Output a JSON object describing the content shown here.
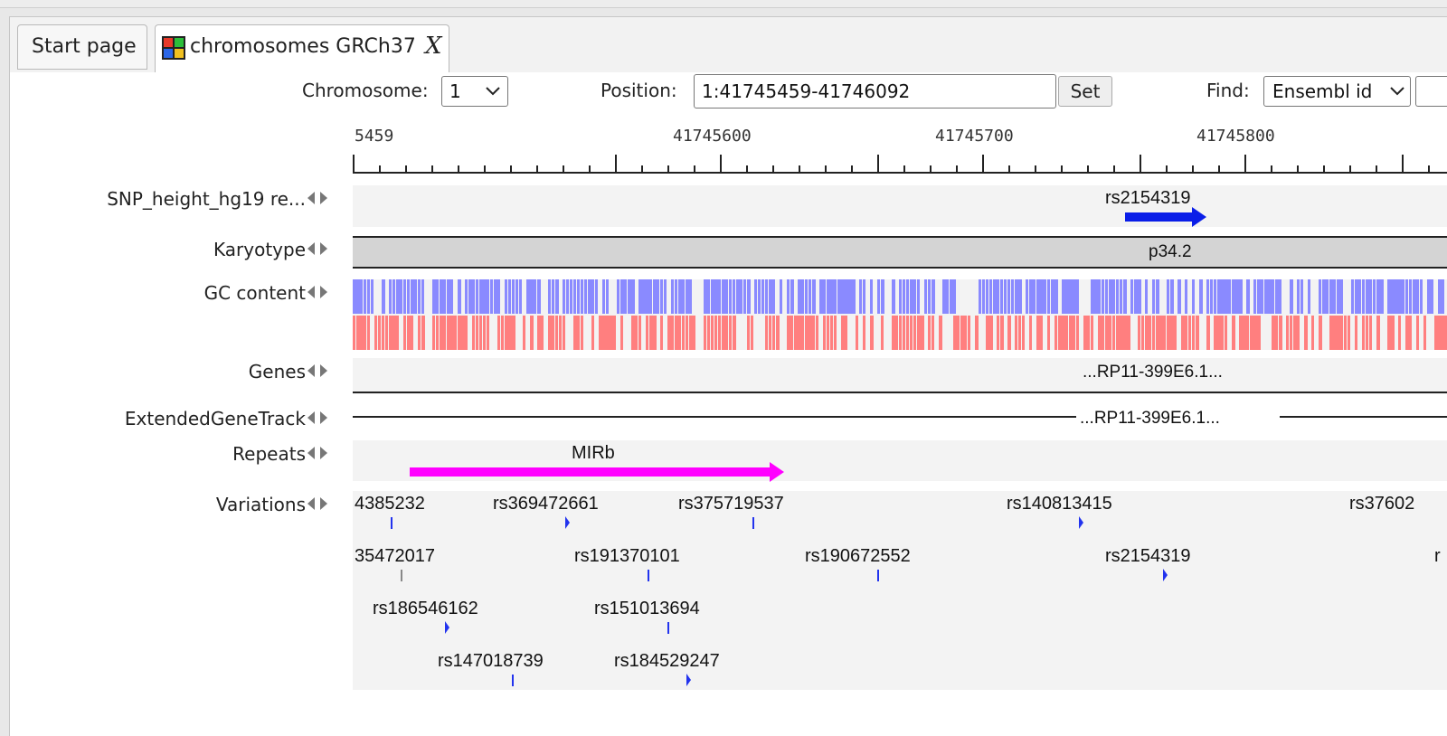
{
  "tabs": {
    "start_label": "Start page",
    "chrom_label": "chromosomes GRCh37",
    "close_label": "X"
  },
  "toolbar": {
    "chromosome_label": "Chromosome:",
    "chromosome_value": "1",
    "position_label": "Position:",
    "position_value": "1:41745459-41746092",
    "set_label": "Set",
    "find_label": "Find:",
    "find_value": "Ensembl id"
  },
  "axis": {
    "ticks": [
      "5459",
      "41745600",
      "41745700",
      "41745800"
    ]
  },
  "tracks": {
    "snp": {
      "label": "SNP_height_hg19 re...",
      "feature": "rs2154319",
      "color": "#0a1ee8"
    },
    "karyotype": {
      "label": "Karyotype",
      "band": "p34.2"
    },
    "gc": {
      "label": "GC content",
      "colors": {
        "high": "#8a8aff",
        "low": "#ff7f7f"
      }
    },
    "genes": {
      "label": "Genes",
      "feature": "...RP11-399E6.1..."
    },
    "extended": {
      "label": "ExtendedGeneTrack",
      "feature": "...RP11-399E6.1..."
    },
    "repeats": {
      "label": "Repeats",
      "feature": "MIRb",
      "color": "#ff00ff"
    },
    "variations": {
      "label": "Variations",
      "items": [
        "4385232",
        "rs369472661",
        "rs375719537",
        "rs140813415",
        "rs37602",
        "35472017",
        "rs191370101",
        "rs190672552",
        "rs2154319",
        "r",
        "rs186546162",
        "rs151013694",
        "rs147018739",
        "rs184529247"
      ]
    }
  }
}
